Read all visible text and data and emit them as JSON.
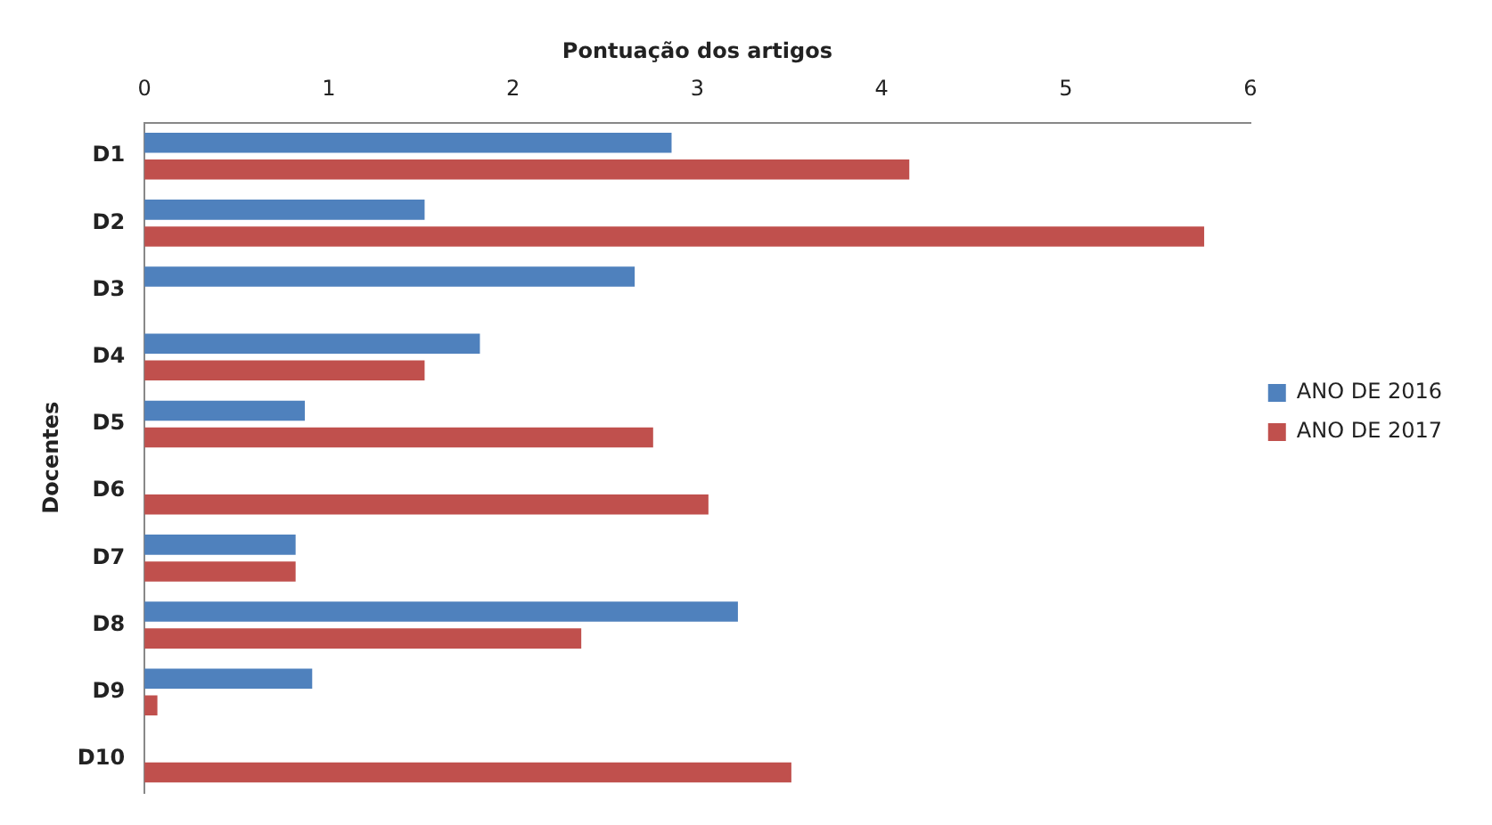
{
  "chart_data": {
    "type": "bar",
    "orientation": "horizontal",
    "xlabel": "Pontuação dos artigos",
    "ylabel": "Docentes",
    "categories": [
      "D1",
      "D2",
      "D3",
      "D4",
      "D5",
      "D6",
      "D7",
      "D8",
      "D9",
      "D10"
    ],
    "series": [
      {
        "name": "ANO DE 2016",
        "color": "#4f81bd",
        "values": [
          2.86,
          1.52,
          2.66,
          1.82,
          0.87,
          0,
          0.82,
          3.22,
          0.91,
          0
        ]
      },
      {
        "name": "ANO DE 2017",
        "color": "#c0504d",
        "values": [
          4.15,
          5.75,
          0,
          1.52,
          2.76,
          3.06,
          0.82,
          2.37,
          0.07,
          3.51
        ]
      }
    ],
    "xlim": [
      0,
      6
    ],
    "xticks": [
      0,
      1,
      2,
      3,
      4,
      5,
      6
    ],
    "legend": "right",
    "grid": false
  }
}
